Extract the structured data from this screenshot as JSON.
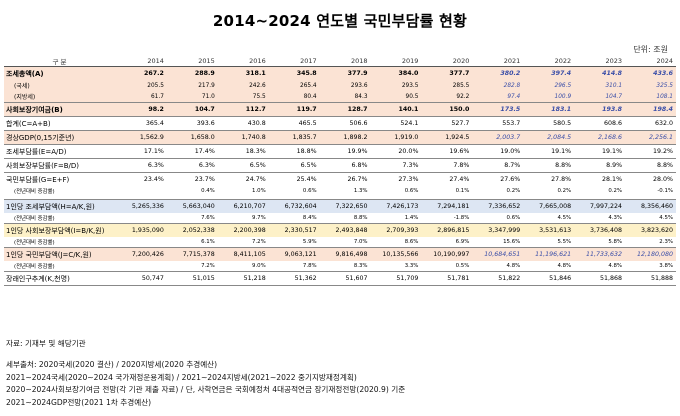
{
  "title": "2014~2024 연도별 국민부담률 현황",
  "unit": "단위: 조원",
  "header": {
    "label": "구 분",
    "years": [
      "2014",
      "2015",
      "2016",
      "2017",
      "2018",
      "2019",
      "2020",
      "2021",
      "2022",
      "2023",
      "2024"
    ]
  },
  "projection_from_index": 7,
  "rows": [
    {
      "label": "조세총액(A)",
      "style": "main bold orange",
      "values": [
        "267.2",
        "288.9",
        "318.1",
        "345.8",
        "377.9",
        "384.0",
        "377.7",
        "380.2",
        "397.4",
        "414.8",
        "433.6"
      ]
    },
    {
      "label": "(국세)",
      "style": "sub orange",
      "values": [
        "205.5",
        "217.9",
        "242.6",
        "265.4",
        "293.6",
        "293.5",
        "285.5",
        "282.8",
        "296.5",
        "310.1",
        "325.5"
      ]
    },
    {
      "label": "(지방세)",
      "style": "sub orange",
      "values": [
        "61.7",
        "71.0",
        "75.5",
        "80.4",
        "84.3",
        "90.5",
        "92.2",
        "97.4",
        "100.9",
        "104.7",
        "108.1"
      ]
    },
    {
      "label": "사회보장기여금(B)",
      "style": "main bold orange bt",
      "values": [
        "98.2",
        "104.7",
        "112.7",
        "119.7",
        "128.7",
        "140.1",
        "150.0",
        "173.5",
        "183.1",
        "193.8",
        "198.4"
      ]
    },
    {
      "label": "합계(C=A+B)",
      "style": "main bt",
      "values": [
        "365.4",
        "393.6",
        "430.8",
        "465.5",
        "506.6",
        "524.1",
        "527.7",
        "553.7",
        "580.5",
        "608.6",
        "632.0"
      ]
    },
    {
      "label": "경상GDP(0,15기준년)",
      "style": "main orange bt",
      "values": [
        "1,562.9",
        "1,658.0",
        "1,740.8",
        "1,835.7",
        "1,898.2",
        "1,919.0",
        "1,924.5",
        "2,003.7",
        "2,084.5",
        "2,168.6",
        "2,256.1"
      ]
    },
    {
      "label": "조세부담률(E=A/D)",
      "style": "main bt",
      "values": [
        "17.1%",
        "17.4%",
        "18.3%",
        "18.8%",
        "19.9%",
        "20.0%",
        "19.6%",
        "19.0%",
        "19.1%",
        "19.1%",
        "19.2%"
      ]
    },
    {
      "label": "사회보장부담률(F=B/D)",
      "style": "main bt",
      "values": [
        "6.3%",
        "6.3%",
        "6.5%",
        "6.5%",
        "6.8%",
        "7.3%",
        "7.8%",
        "8.7%",
        "8.8%",
        "8.9%",
        "8.8%"
      ]
    },
    {
      "label": "국민부담률(G=E+F)",
      "style": "main bt",
      "values": [
        "23.4%",
        "23.7%",
        "24.7%",
        "25.4%",
        "26.7%",
        "27.3%",
        "27.4%",
        "27.6%",
        "27.8%",
        "28.1%",
        "28.0%"
      ]
    },
    {
      "label": "(전년대비 증감률)",
      "style": "thin",
      "values": [
        "",
        "0.4%",
        "1.0%",
        "0.6%",
        "1.3%",
        "0.6%",
        "0.1%",
        "0.2%",
        "0.2%",
        "0.2%",
        "-0.1%"
      ]
    },
    {
      "label": "",
      "style": "spacer",
      "values": [
        "",
        "",
        "",
        "",
        "",
        "",
        "",
        "",
        "",
        "",
        ""
      ]
    },
    {
      "label": "1인당 조세부담액(H=A/K,원)",
      "style": "main blue bt",
      "values": [
        "5,265,336",
        "5,663,040",
        "6,210,707",
        "6,732,604",
        "7,322,650",
        "7,426,173",
        "7,294,181",
        "7,336,652",
        "7,665,008",
        "7,997,224",
        "8,356,460"
      ]
    },
    {
      "label": "(전년대비 증감률)",
      "style": "thin",
      "values": [
        "",
        "7.6%",
        "9.7%",
        "8.4%",
        "8.8%",
        "1.4%",
        "-1.8%",
        "0.6%",
        "4.5%",
        "4.3%",
        "4.5%"
      ]
    },
    {
      "label": "1인당 사회보장부담액(I=B/K,원)",
      "style": "main yellow bt",
      "values": [
        "1,935,090",
        "2,052,338",
        "2,200,398",
        "2,330,517",
        "2,493,848",
        "2,709,393",
        "2,896,815",
        "3,347,999",
        "3,531,613",
        "3,736,408",
        "3,823,620"
      ]
    },
    {
      "label": "(전년대비 증감률)",
      "style": "thin",
      "values": [
        "",
        "6.1%",
        "7.2%",
        "5.9%",
        "7.0%",
        "8.6%",
        "6.9%",
        "15.6%",
        "5.5%",
        "5.8%",
        "2.3%"
      ]
    },
    {
      "label": "1인당 국민부담액(J=C/K,원)",
      "style": "main orange bt",
      "values": [
        "7,200,426",
        "7,715,378",
        "8,411,105",
        "9,063,121",
        "9,816,498",
        "10,135,566",
        "10,190,997",
        "10,684,651",
        "11,196,621",
        "11,733,632",
        "12,180,080"
      ]
    },
    {
      "label": "(전년대비 증감률)",
      "style": "thin",
      "values": [
        "",
        "7.2%",
        "9.0%",
        "7.8%",
        "8.3%",
        "3.3%",
        "0.5%",
        "4.8%",
        "4.8%",
        "4.8%",
        "3.8%"
      ]
    },
    {
      "label": "장래인구추계(K,천명)",
      "style": "main bt bb",
      "values": [
        "50,747",
        "51,015",
        "51,218",
        "51,362",
        "51,607",
        "51,709",
        "51,781",
        "51,822",
        "51,846",
        "51,868",
        "51,888"
      ]
    }
  ],
  "notes": {
    "source": "자료: 기재부 및 해당기관",
    "lines": [
      "세부출처: 2020국세(2020 결산) / 2020지방세(2020 추경예산)",
      "2021~2024국세(2020~2024 국가재정운용계획) / 2021~2024지방세(2021~2022 중기지방재정계획)",
      "2020~2024사회보장기여금 전망(각 기관 제출 자료) / 단, 사학연금은 국회예정처 4대공적연금 장기재정전망(2020.9) 기준",
      "2021~2024GDP전망(2021 1차 추경예산)"
    ]
  }
}
